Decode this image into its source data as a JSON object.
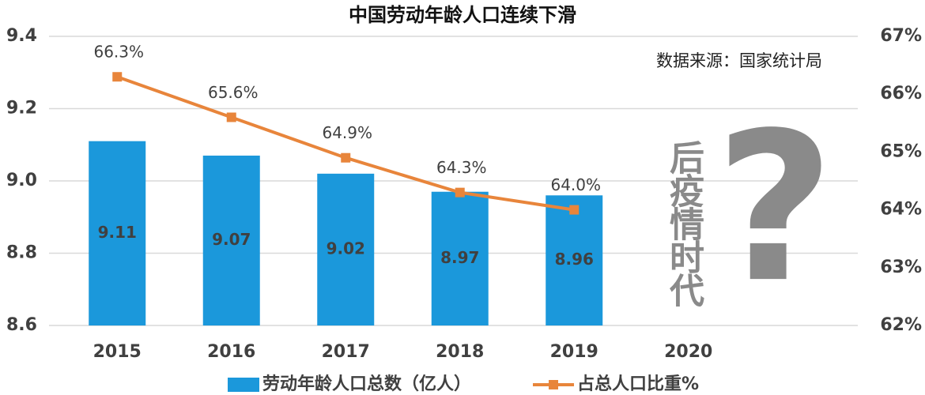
{
  "chart_data": {
    "type": "bar_line",
    "title": "中国劳动年龄人口连续下滑",
    "categories": [
      "2015",
      "2016",
      "2017",
      "2018",
      "2019",
      "2020"
    ],
    "series": [
      {
        "name": "劳动年龄人口总数（亿人）",
        "type": "bar",
        "color": "#1b98db",
        "values": [
          9.11,
          9.07,
          9.02,
          8.97,
          8.96,
          null
        ]
      },
      {
        "name": "占总人口比重%",
        "type": "line",
        "axis": "y2",
        "color": "#e8853b",
        "values": [
          66.3,
          65.6,
          64.9,
          64.3,
          64.0,
          null
        ],
        "value_labels": [
          "66.3%",
          "65.6%",
          "64.9%",
          "64.3%",
          "64.0%",
          null
        ]
      }
    ],
    "ylim": [
      8.6,
      9.4
    ],
    "yticks": [
      8.6,
      8.8,
      {
        "value": 9,
        "label": "9.0"
      },
      9.2,
      9.4
    ],
    "y2lim": [
      62,
      67
    ],
    "y2ticks": [
      {
        "value": 62,
        "label": "62%"
      },
      {
        "value": 63,
        "label": "63%"
      },
      {
        "value": 64,
        "label": "64%"
      },
      {
        "value": 65,
        "label": "65%"
      },
      {
        "value": 66,
        "label": "66%"
      },
      {
        "value": 67,
        "label": "67%"
      }
    ],
    "grid": true,
    "legend": "bottom",
    "annotations": [
      "数据来源：国家统计局",
      "后疫情时代",
      "?"
    ]
  }
}
